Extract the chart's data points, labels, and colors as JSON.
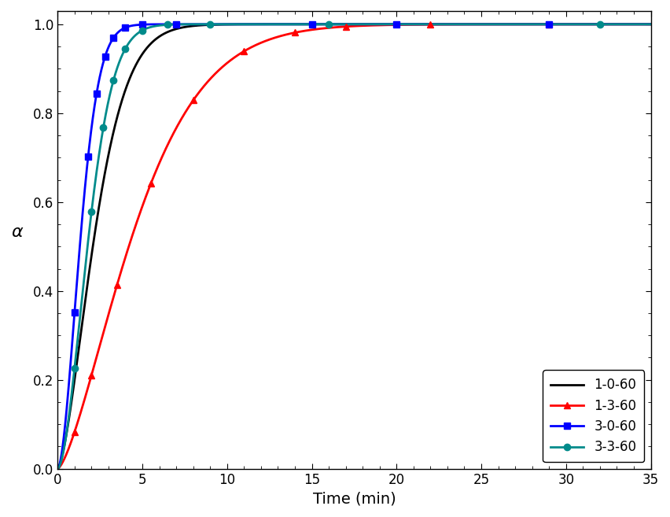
{
  "title": "",
  "xlabel": "Time (min)",
  "ylabel": "α",
  "xlim": [
    0,
    35
  ],
  "ylim": [
    0.0,
    1.03
  ],
  "yticks": [
    0.0,
    0.2,
    0.4,
    0.6,
    0.8,
    1.0
  ],
  "xticks": [
    0,
    5,
    10,
    15,
    20,
    25,
    30,
    35
  ],
  "series": [
    {
      "label": "1-0-60",
      "color": "#000000",
      "marker": null,
      "k": 0.38,
      "n": 1.55,
      "marker_times": []
    },
    {
      "label": "1-3-60",
      "color": "#ff0000",
      "marker": "^",
      "k": 0.185,
      "n": 1.45,
      "marker_times": [
        1.0,
        2.0,
        3.5,
        5.5,
        8.0,
        11.0,
        14.0,
        17.0,
        22.0,
        29.0
      ]
    },
    {
      "label": "3-0-60",
      "color": "#0000ff",
      "marker": "s",
      "k": 0.62,
      "n": 1.75,
      "marker_times": [
        1.0,
        1.8,
        2.3,
        2.8,
        3.3,
        4.0,
        5.0,
        7.0,
        15.0,
        20.0,
        29.0
      ]
    },
    {
      "label": "3-3-60",
      "color": "#008B8B",
      "marker": "o",
      "k": 0.46,
      "n": 1.75,
      "marker_times": [
        1.0,
        2.0,
        2.7,
        3.3,
        4.0,
        5.0,
        6.5,
        9.0,
        16.0,
        32.0
      ]
    }
  ],
  "figsize": [
    8.52,
    6.57
  ],
  "dpi": 100
}
